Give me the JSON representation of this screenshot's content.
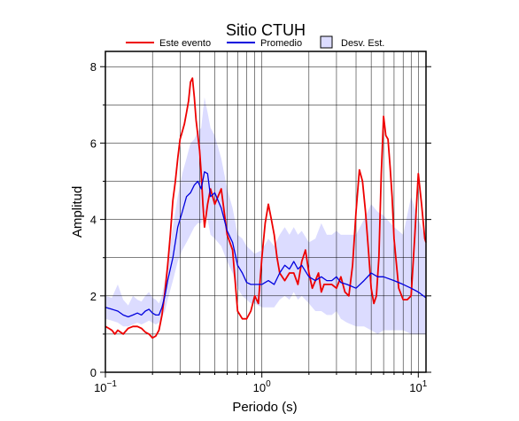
{
  "chart_data": {
    "type": "line",
    "title": "Sitio CTUH",
    "xlabel": "Periodo (s)",
    "ylabel": "Amplitud",
    "xscale": "log",
    "xlim": [
      0.1,
      11.2
    ],
    "ylim": [
      0,
      8.4
    ],
    "grid": true,
    "legend_position": "top",
    "x_ticks": [
      {
        "value": 0.1,
        "base": "10",
        "exp": "−1"
      },
      {
        "value": 1,
        "base": "10",
        "exp": "0"
      },
      {
        "value": 10,
        "base": "10",
        "exp": "1"
      }
    ],
    "y_ticks": [
      {
        "value": 0,
        "label": "0"
      },
      {
        "value": 2,
        "label": "2"
      },
      {
        "value": 4,
        "label": "4"
      },
      {
        "value": 6,
        "label": "6"
      },
      {
        "value": 8,
        "label": "8"
      }
    ],
    "series": [
      {
        "name": "Este evento",
        "color": "#ee0000",
        "points": [
          [
            0.1,
            1.2
          ],
          [
            0.105,
            1.15
          ],
          [
            0.11,
            1.1
          ],
          [
            0.115,
            1.0
          ],
          [
            0.12,
            1.1
          ],
          [
            0.13,
            1.0
          ],
          [
            0.14,
            1.15
          ],
          [
            0.15,
            1.2
          ],
          [
            0.16,
            1.2
          ],
          [
            0.17,
            1.15
          ],
          [
            0.18,
            1.05
          ],
          [
            0.19,
            1.0
          ],
          [
            0.2,
            0.9
          ],
          [
            0.21,
            0.95
          ],
          [
            0.22,
            1.1
          ],
          [
            0.23,
            1.5
          ],
          [
            0.24,
            2.1
          ],
          [
            0.25,
            2.8
          ],
          [
            0.26,
            3.6
          ],
          [
            0.27,
            4.5
          ],
          [
            0.28,
            5.0
          ],
          [
            0.29,
            5.6
          ],
          [
            0.3,
            6.1
          ],
          [
            0.31,
            6.3
          ],
          [
            0.32,
            6.5
          ],
          [
            0.33,
            6.8
          ],
          [
            0.34,
            7.1
          ],
          [
            0.35,
            7.6
          ],
          [
            0.36,
            7.7
          ],
          [
            0.37,
            7.2
          ],
          [
            0.38,
            6.6
          ],
          [
            0.39,
            6.2
          ],
          [
            0.4,
            5.8
          ],
          [
            0.41,
            5.2
          ],
          [
            0.42,
            4.4
          ],
          [
            0.43,
            3.8
          ],
          [
            0.45,
            4.4
          ],
          [
            0.47,
            4.8
          ],
          [
            0.5,
            4.4
          ],
          [
            0.55,
            4.8
          ],
          [
            0.6,
            3.6
          ],
          [
            0.65,
            3.2
          ],
          [
            0.7,
            1.6
          ],
          [
            0.75,
            1.4
          ],
          [
            0.8,
            1.4
          ],
          [
            0.85,
            1.6
          ],
          [
            0.9,
            2.0
          ],
          [
            0.95,
            1.8
          ],
          [
            1.0,
            3.0
          ],
          [
            1.05,
            3.9
          ],
          [
            1.1,
            4.4
          ],
          [
            1.15,
            4.0
          ],
          [
            1.2,
            3.6
          ],
          [
            1.25,
            3.0
          ],
          [
            1.3,
            2.6
          ],
          [
            1.4,
            2.4
          ],
          [
            1.5,
            2.6
          ],
          [
            1.6,
            2.6
          ],
          [
            1.7,
            2.3
          ],
          [
            1.8,
            2.9
          ],
          [
            1.9,
            3.2
          ],
          [
            2.0,
            2.6
          ],
          [
            2.1,
            2.2
          ],
          [
            2.2,
            2.4
          ],
          [
            2.3,
            2.6
          ],
          [
            2.4,
            2.1
          ],
          [
            2.5,
            2.3
          ],
          [
            2.6,
            2.3
          ],
          [
            2.8,
            2.3
          ],
          [
            3.0,
            2.2
          ],
          [
            3.2,
            2.5
          ],
          [
            3.4,
            2.1
          ],
          [
            3.6,
            2.0
          ],
          [
            3.8,
            2.8
          ],
          [
            4.0,
            4.2
          ],
          [
            4.2,
            5.3
          ],
          [
            4.4,
            5.0
          ],
          [
            4.6,
            4.2
          ],
          [
            4.8,
            3.2
          ],
          [
            5.0,
            2.2
          ],
          [
            5.2,
            1.8
          ],
          [
            5.4,
            2.0
          ],
          [
            5.6,
            3.0
          ],
          [
            5.8,
            5.2
          ],
          [
            6.0,
            6.7
          ],
          [
            6.2,
            6.2
          ],
          [
            6.4,
            6.1
          ],
          [
            6.6,
            5.4
          ],
          [
            6.8,
            4.6
          ],
          [
            7.0,
            3.5
          ],
          [
            7.5,
            2.2
          ],
          [
            8.0,
            1.9
          ],
          [
            8.5,
            1.9
          ],
          [
            9.0,
            2.0
          ],
          [
            9.5,
            3.6
          ],
          [
            10.0,
            5.2
          ],
          [
            10.5,
            4.4
          ],
          [
            11.0,
            3.5
          ],
          [
            11.2,
            3.4
          ]
        ]
      },
      {
        "name": "Promedio",
        "color": "#0000dd",
        "points": [
          [
            0.1,
            1.7
          ],
          [
            0.11,
            1.65
          ],
          [
            0.12,
            1.6
          ],
          [
            0.13,
            1.5
          ],
          [
            0.14,
            1.45
          ],
          [
            0.15,
            1.5
          ],
          [
            0.16,
            1.55
          ],
          [
            0.17,
            1.5
          ],
          [
            0.18,
            1.6
          ],
          [
            0.19,
            1.65
          ],
          [
            0.2,
            1.55
          ],
          [
            0.21,
            1.5
          ],
          [
            0.22,
            1.5
          ],
          [
            0.23,
            1.7
          ],
          [
            0.24,
            2.0
          ],
          [
            0.25,
            2.4
          ],
          [
            0.27,
            3.0
          ],
          [
            0.29,
            3.8
          ],
          [
            0.31,
            4.2
          ],
          [
            0.33,
            4.6
          ],
          [
            0.35,
            4.7
          ],
          [
            0.37,
            4.9
          ],
          [
            0.39,
            5.0
          ],
          [
            0.41,
            4.8
          ],
          [
            0.43,
            5.25
          ],
          [
            0.45,
            5.2
          ],
          [
            0.47,
            4.6
          ],
          [
            0.5,
            4.7
          ],
          [
            0.55,
            4.3
          ],
          [
            0.6,
            3.7
          ],
          [
            0.65,
            3.4
          ],
          [
            0.7,
            2.8
          ],
          [
            0.75,
            2.6
          ],
          [
            0.8,
            2.35
          ],
          [
            0.85,
            2.3
          ],
          [
            0.9,
            2.3
          ],
          [
            1.0,
            2.3
          ],
          [
            1.1,
            2.4
          ],
          [
            1.2,
            2.3
          ],
          [
            1.3,
            2.6
          ],
          [
            1.4,
            2.8
          ],
          [
            1.5,
            2.7
          ],
          [
            1.6,
            2.9
          ],
          [
            1.7,
            2.7
          ],
          [
            1.8,
            2.8
          ],
          [
            2.0,
            2.5
          ],
          [
            2.2,
            2.4
          ],
          [
            2.4,
            2.5
          ],
          [
            2.6,
            2.4
          ],
          [
            2.8,
            2.4
          ],
          [
            3.0,
            2.5
          ],
          [
            3.2,
            2.35
          ],
          [
            3.5,
            2.3
          ],
          [
            4.0,
            2.2
          ],
          [
            4.5,
            2.4
          ],
          [
            5.0,
            2.6
          ],
          [
            5.5,
            2.5
          ],
          [
            6.0,
            2.5
          ],
          [
            7.0,
            2.4
          ],
          [
            8.0,
            2.3
          ],
          [
            9.0,
            2.2
          ],
          [
            10.0,
            2.1
          ],
          [
            11.2,
            1.95
          ]
        ]
      },
      {
        "name": "Desv. Est.",
        "type": "band",
        "fill": "#dcdcff",
        "points": [
          [
            0.1,
            1.4,
            2.0
          ],
          [
            0.11,
            1.35,
            1.95
          ],
          [
            0.12,
            1.3,
            2.3
          ],
          [
            0.13,
            1.2,
            1.9
          ],
          [
            0.14,
            1.2,
            1.75
          ],
          [
            0.15,
            1.25,
            2.0
          ],
          [
            0.16,
            1.3,
            1.9
          ],
          [
            0.17,
            1.25,
            1.85
          ],
          [
            0.18,
            1.3,
            2.0
          ],
          [
            0.19,
            1.35,
            2.1
          ],
          [
            0.2,
            1.3,
            1.95
          ],
          [
            0.21,
            1.25,
            1.9
          ],
          [
            0.22,
            1.3,
            1.8
          ],
          [
            0.23,
            1.45,
            2.0
          ],
          [
            0.24,
            1.6,
            2.4
          ],
          [
            0.25,
            1.9,
            2.9
          ],
          [
            0.27,
            2.4,
            3.8
          ],
          [
            0.29,
            2.9,
            4.6
          ],
          [
            0.31,
            3.2,
            5.2
          ],
          [
            0.33,
            3.4,
            5.6
          ],
          [
            0.35,
            3.6,
            6.0
          ],
          [
            0.37,
            3.8,
            6.1
          ],
          [
            0.39,
            3.9,
            6.3
          ],
          [
            0.41,
            3.9,
            6.4
          ],
          [
            0.43,
            4.2,
            7.2
          ],
          [
            0.45,
            4.0,
            6.8
          ],
          [
            0.47,
            3.6,
            6.4
          ],
          [
            0.5,
            3.5,
            6.2
          ],
          [
            0.55,
            3.3,
            5.6
          ],
          [
            0.6,
            2.9,
            4.8
          ],
          [
            0.65,
            2.6,
            4.3
          ],
          [
            0.7,
            2.2,
            3.6
          ],
          [
            0.75,
            2.0,
            3.5
          ],
          [
            0.8,
            1.9,
            3.3
          ],
          [
            0.85,
            1.8,
            3.2
          ],
          [
            0.9,
            1.8,
            3.1
          ],
          [
            1.0,
            1.7,
            3.2
          ],
          [
            1.1,
            1.7,
            3.5
          ],
          [
            1.2,
            1.7,
            3.3
          ],
          [
            1.3,
            1.9,
            3.6
          ],
          [
            1.4,
            2.0,
            3.8
          ],
          [
            1.5,
            1.9,
            3.6
          ],
          [
            1.6,
            2.1,
            3.8
          ],
          [
            1.7,
            1.9,
            3.6
          ],
          [
            1.8,
            2.0,
            3.7
          ],
          [
            2.0,
            1.8,
            3.4
          ],
          [
            2.2,
            1.6,
            3.5
          ],
          [
            2.4,
            1.6,
            3.9
          ],
          [
            2.6,
            1.5,
            3.6
          ],
          [
            2.8,
            1.5,
            3.6
          ],
          [
            3.0,
            1.6,
            3.7
          ],
          [
            3.2,
            1.4,
            3.6
          ],
          [
            3.5,
            1.3,
            3.6
          ],
          [
            4.0,
            1.2,
            3.6
          ],
          [
            4.5,
            1.2,
            4.0
          ],
          [
            5.0,
            1.1,
            4.4
          ],
          [
            5.5,
            1.0,
            4.2
          ],
          [
            6.0,
            1.1,
            4.1
          ],
          [
            7.0,
            1.1,
            3.8
          ],
          [
            8.0,
            1.1,
            3.6
          ],
          [
            9.0,
            1.0,
            4.6
          ],
          [
            10.0,
            1.0,
            4.0
          ],
          [
            11.2,
            1.0,
            3.5
          ]
        ]
      }
    ]
  }
}
